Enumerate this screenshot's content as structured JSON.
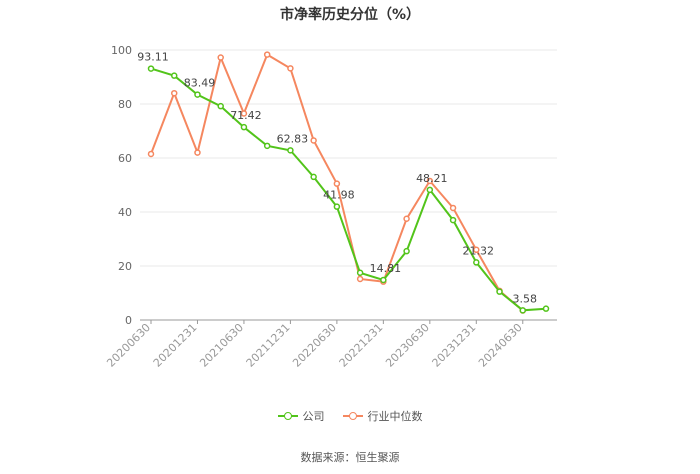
{
  "chart_data": {
    "type": "line",
    "title": "市净率历史分位（%）",
    "xlabel": "",
    "ylabel": "",
    "ylim": [
      0,
      100
    ],
    "yticks": [
      0,
      20,
      40,
      60,
      80,
      100
    ],
    "grid": true,
    "legend_position": "bottom",
    "x": [
      "20200630",
      "20200930",
      "20201231",
      "20210331",
      "20210630",
      "20210930",
      "20211231",
      "20220331",
      "20220630",
      "20220930",
      "20221231",
      "20230331",
      "20230630",
      "20230930",
      "20231231",
      "20240331",
      "20240630",
      "20240930"
    ],
    "xtick_labels": [
      "20200630",
      "20201231",
      "20210630",
      "20211231",
      "20220630",
      "20221231",
      "20230630",
      "20231231",
      "20240630"
    ],
    "series": [
      {
        "name": "公司",
        "color": "#52c41a",
        "values": [
          93.11,
          90.5,
          83.49,
          79.2,
          71.42,
          64.5,
          62.83,
          53.0,
          41.98,
          17.5,
          14.81,
          25.5,
          48.21,
          37.0,
          21.32,
          10.5,
          3.58,
          4.2
        ],
        "labels": [
          "93.11",
          "",
          "83.49",
          "",
          "71.42",
          "",
          "62.83",
          "",
          "41.98",
          "",
          "14.81",
          "",
          "48.21",
          "",
          "21.32",
          "",
          "3.58",
          ""
        ]
      },
      {
        "name": "行业中位数",
        "color": "#f5875f",
        "values": [
          61.5,
          84.0,
          62.0,
          97.2,
          76.5,
          98.3,
          93.2,
          66.5,
          50.5,
          15.2,
          14.2,
          37.5,
          51.5,
          41.5,
          26.0,
          10.8,
          3.5,
          null
        ]
      }
    ],
    "source": "数据来源：恒生聚源"
  }
}
